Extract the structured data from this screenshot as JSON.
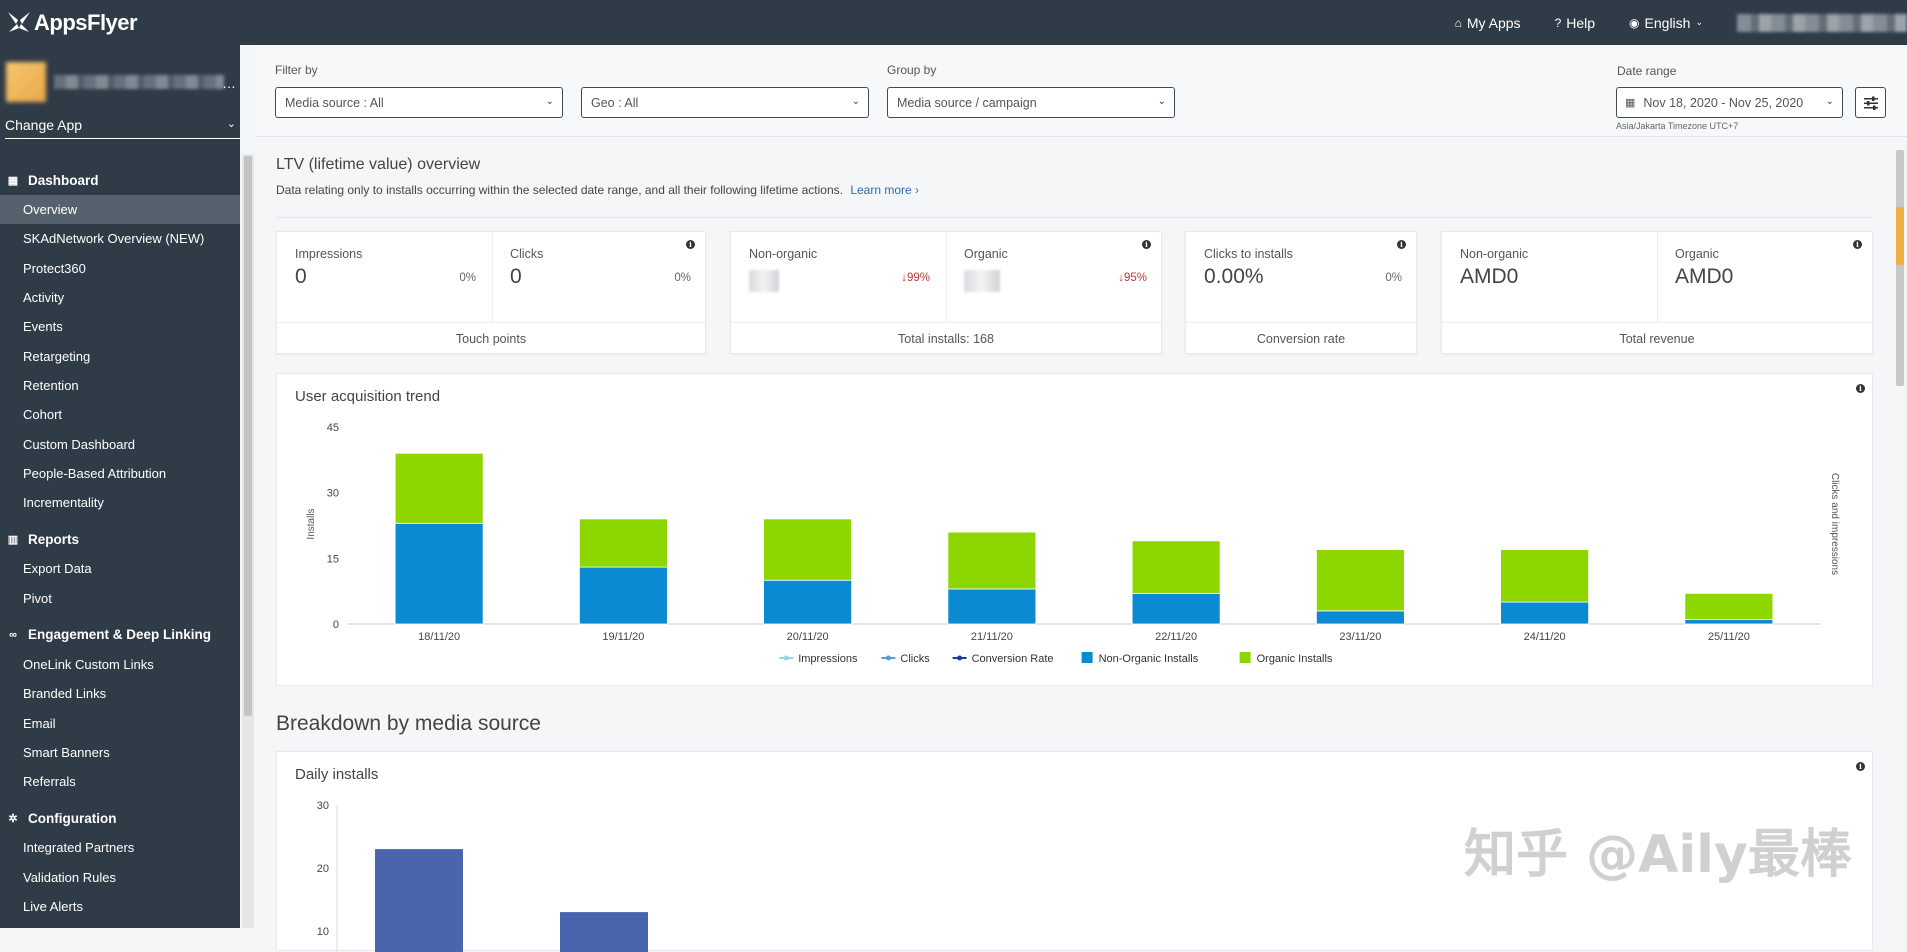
{
  "topbar": {
    "logo_text": "AppsFlyer",
    "nav": [
      {
        "icon": "home-icon",
        "label": "My Apps"
      },
      {
        "icon": "help-icon",
        "label": "Help"
      },
      {
        "icon": "globe-icon",
        "label": "English"
      }
    ]
  },
  "sidebar": {
    "change_app_label": "Change App",
    "sections": [
      {
        "title": "Dashboard",
        "icon": "grid-icon",
        "items": [
          "Overview",
          "SKAdNetwork Overview (NEW)",
          "Protect360",
          "Activity",
          "Events",
          "Retargeting",
          "Retention",
          "Cohort",
          "Custom Dashboard",
          "People-Based Attribution",
          "Incrementality"
        ]
      },
      {
        "title": "Reports",
        "icon": "bar-chart-icon",
        "items": [
          "Export Data",
          "Pivot"
        ]
      },
      {
        "title": "Engagement & Deep Linking",
        "icon": "link-icon",
        "items": [
          "OneLink Custom Links",
          "Branded Links",
          "Email",
          "Smart Banners",
          "Referrals"
        ]
      },
      {
        "title": "Configuration",
        "icon": "gear-icon",
        "items": [
          "Integrated Partners",
          "Validation Rules",
          "Live Alerts"
        ]
      }
    ]
  },
  "filters": {
    "filter_by_label": "Filter by",
    "media_source": "Media source : All",
    "geo": "Geo : All",
    "group_by_label": "Group by",
    "group_by": "Media source / campaign",
    "date_range_label": "Date range",
    "date_range": "Nov 18, 2020 - Nov 25, 2020",
    "timezone": "Asia/Jakarta Timezone UTC+7"
  },
  "ltv": {
    "title": "LTV (lifetime value) overview",
    "description": "Data relating only to installs occurring within the selected date range, and all their following lifetime actions.",
    "learn_more": "Learn more ›"
  },
  "kpis": {
    "touch": {
      "impressions_label": "Impressions",
      "impressions_value": "0",
      "impressions_pct": "0%",
      "clicks_label": "Clicks",
      "clicks_value": "0",
      "clicks_pct": "0%",
      "footer": "Touch points"
    },
    "installs": {
      "nonorganic_label": "Non-organic",
      "nonorganic_pct": "↓99%",
      "organic_label": "Organic",
      "organic_pct": "↓95%",
      "footer": "Total installs: 168"
    },
    "conversion": {
      "label": "Clicks to installs",
      "value": "0.00%",
      "pct": "0%",
      "footer": "Conversion rate"
    },
    "revenue": {
      "nonorganic_label": "Non-organic",
      "nonorganic_value": "AMD0",
      "organic_label": "Organic",
      "organic_value": "AMD0",
      "footer": "Total revenue"
    }
  },
  "trend": {
    "title": "User acquisition trend"
  },
  "breakdown": {
    "title": "Breakdown by media source",
    "daily_title": "Daily installs"
  },
  "watermark": "知乎 @Aily最棒",
  "colors": {
    "non_organic": "#0a8ad3",
    "organic": "#8ed600",
    "daily": "#4a64ad",
    "sidebar": "#2f3b47"
  },
  "chart_data": [
    {
      "type": "bar",
      "stacked": true,
      "title": "User acquisition trend",
      "ylabel": "Installs",
      "y2label": "Clicks and impressions",
      "ylim": [
        0,
        45
      ],
      "yticks": [
        0,
        15,
        30,
        45
      ],
      "categories": [
        "18/11/20",
        "19/11/20",
        "20/11/20",
        "21/11/20",
        "22/11/20",
        "23/11/20",
        "24/11/20",
        "25/11/20"
      ],
      "series": [
        {
          "name": "Non-Organic Installs",
          "color": "#0a8ad3",
          "values": [
            23,
            13,
            10,
            8,
            7,
            3,
            5,
            1
          ]
        },
        {
          "name": "Organic Installs",
          "color": "#8ed600",
          "values": [
            16,
            11,
            14,
            13,
            12,
            14,
            12,
            6
          ]
        }
      ],
      "legend": [
        {
          "name": "Impressions",
          "color": "#8fd5ee",
          "kind": "line"
        },
        {
          "name": "Clicks",
          "color": "#4a9fe0",
          "kind": "line"
        },
        {
          "name": "Conversion Rate",
          "color": "#1d3c9a",
          "kind": "line"
        },
        {
          "name": "Non-Organic Installs",
          "color": "#0a8ad3",
          "kind": "box"
        },
        {
          "name": "Organic Installs",
          "color": "#8ed600",
          "kind": "box"
        }
      ],
      "legend_position": "bottom",
      "grid": false
    },
    {
      "type": "bar",
      "title": "Daily installs",
      "ylim": [
        0,
        30
      ],
      "yticks": [
        10,
        20,
        30
      ],
      "values": [
        23,
        13
      ],
      "grid": false
    }
  ]
}
